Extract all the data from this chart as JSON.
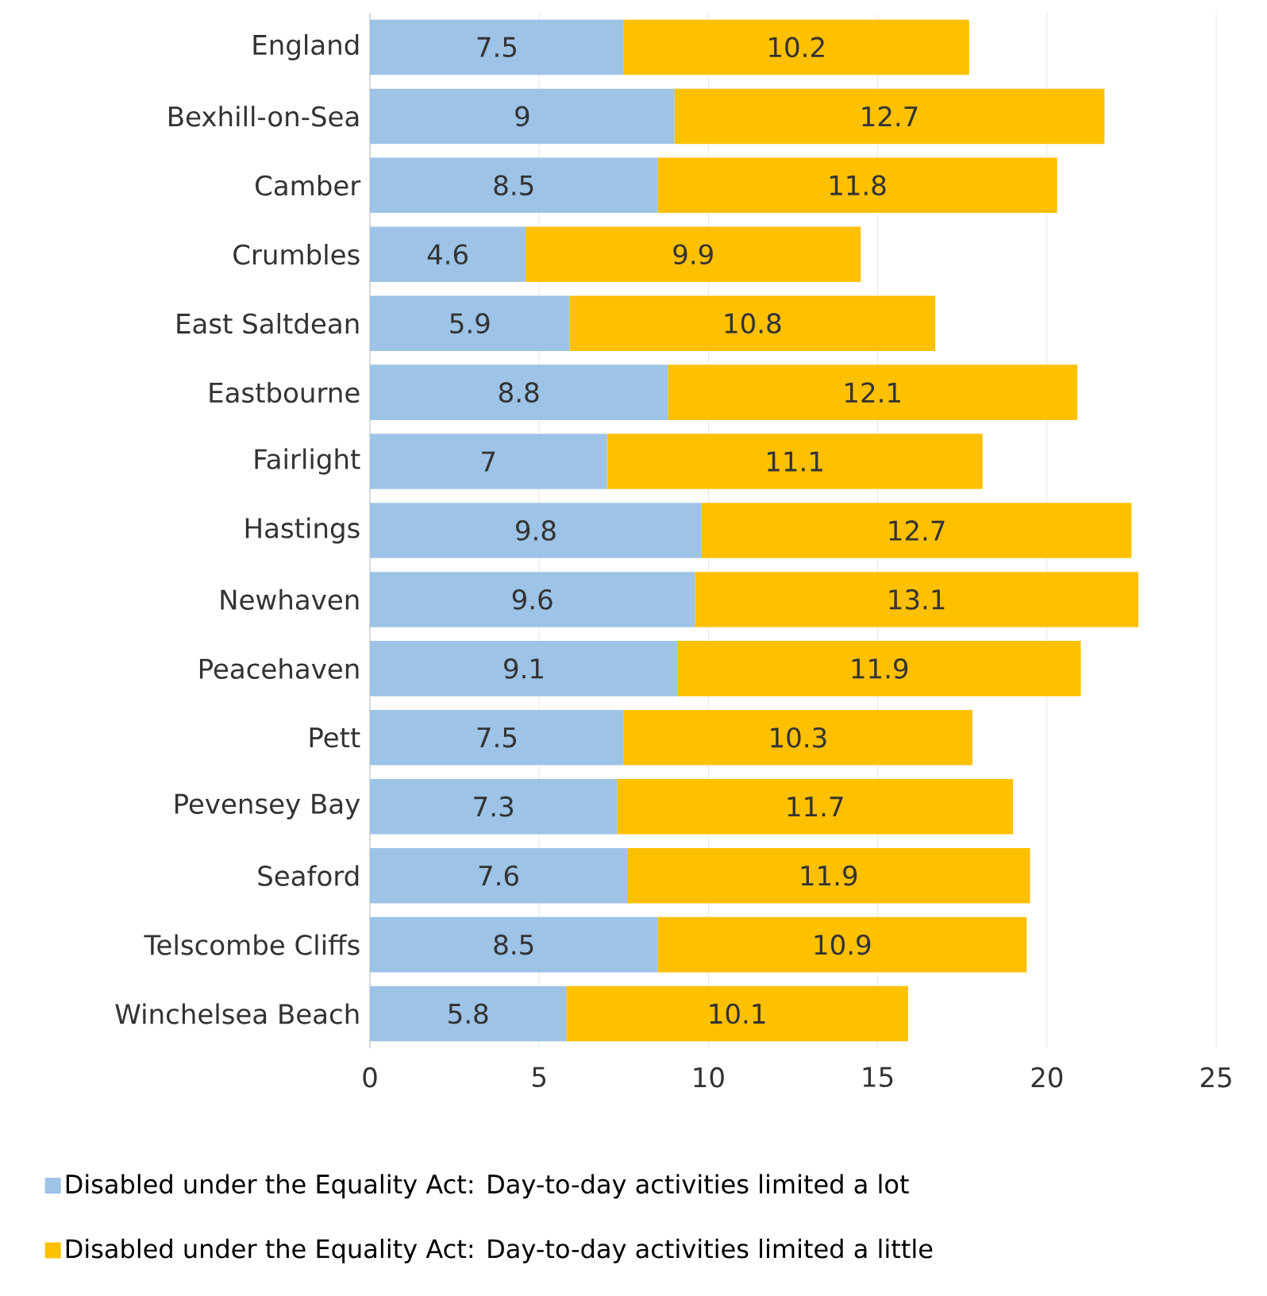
{
  "chart_data": {
    "type": "bar",
    "orientation": "horizontal",
    "stacked": true,
    "categories": [
      "England",
      "Bexhill-on-Sea",
      "Camber",
      "Crumbles",
      "East Saltdean",
      "Eastbourne",
      "Fairlight",
      "Hastings",
      "Newhaven",
      "Peacehaven",
      "Pett",
      "Pevensey Bay",
      "Seaford",
      "Telscombe Cliffs",
      "Winchelsea Beach"
    ],
    "series": [
      {
        "name": "Disabled under the Equality Act: Day-to-day activities limited a lot",
        "color": "#9dc3e6",
        "values": [
          7.5,
          9,
          8.5,
          4.6,
          5.9,
          8.8,
          7,
          9.8,
          9.6,
          9.1,
          7.5,
          7.3,
          7.6,
          8.5,
          5.8
        ]
      },
      {
        "name": "Disabled under the Equality Act: Day-to-day activities limited a little",
        "color": "#ffc000",
        "values": [
          10.2,
          12.7,
          11.8,
          9.9,
          10.8,
          12.1,
          11.1,
          12.7,
          13.1,
          11.9,
          10.3,
          11.7,
          11.9,
          10.9,
          10.1
        ]
      }
    ],
    "xlim": [
      0,
      25
    ],
    "xticks": [
      0,
      5,
      10,
      15,
      20,
      25
    ],
    "grid": "x",
    "legend": "bottom",
    "data_labels": true
  }
}
